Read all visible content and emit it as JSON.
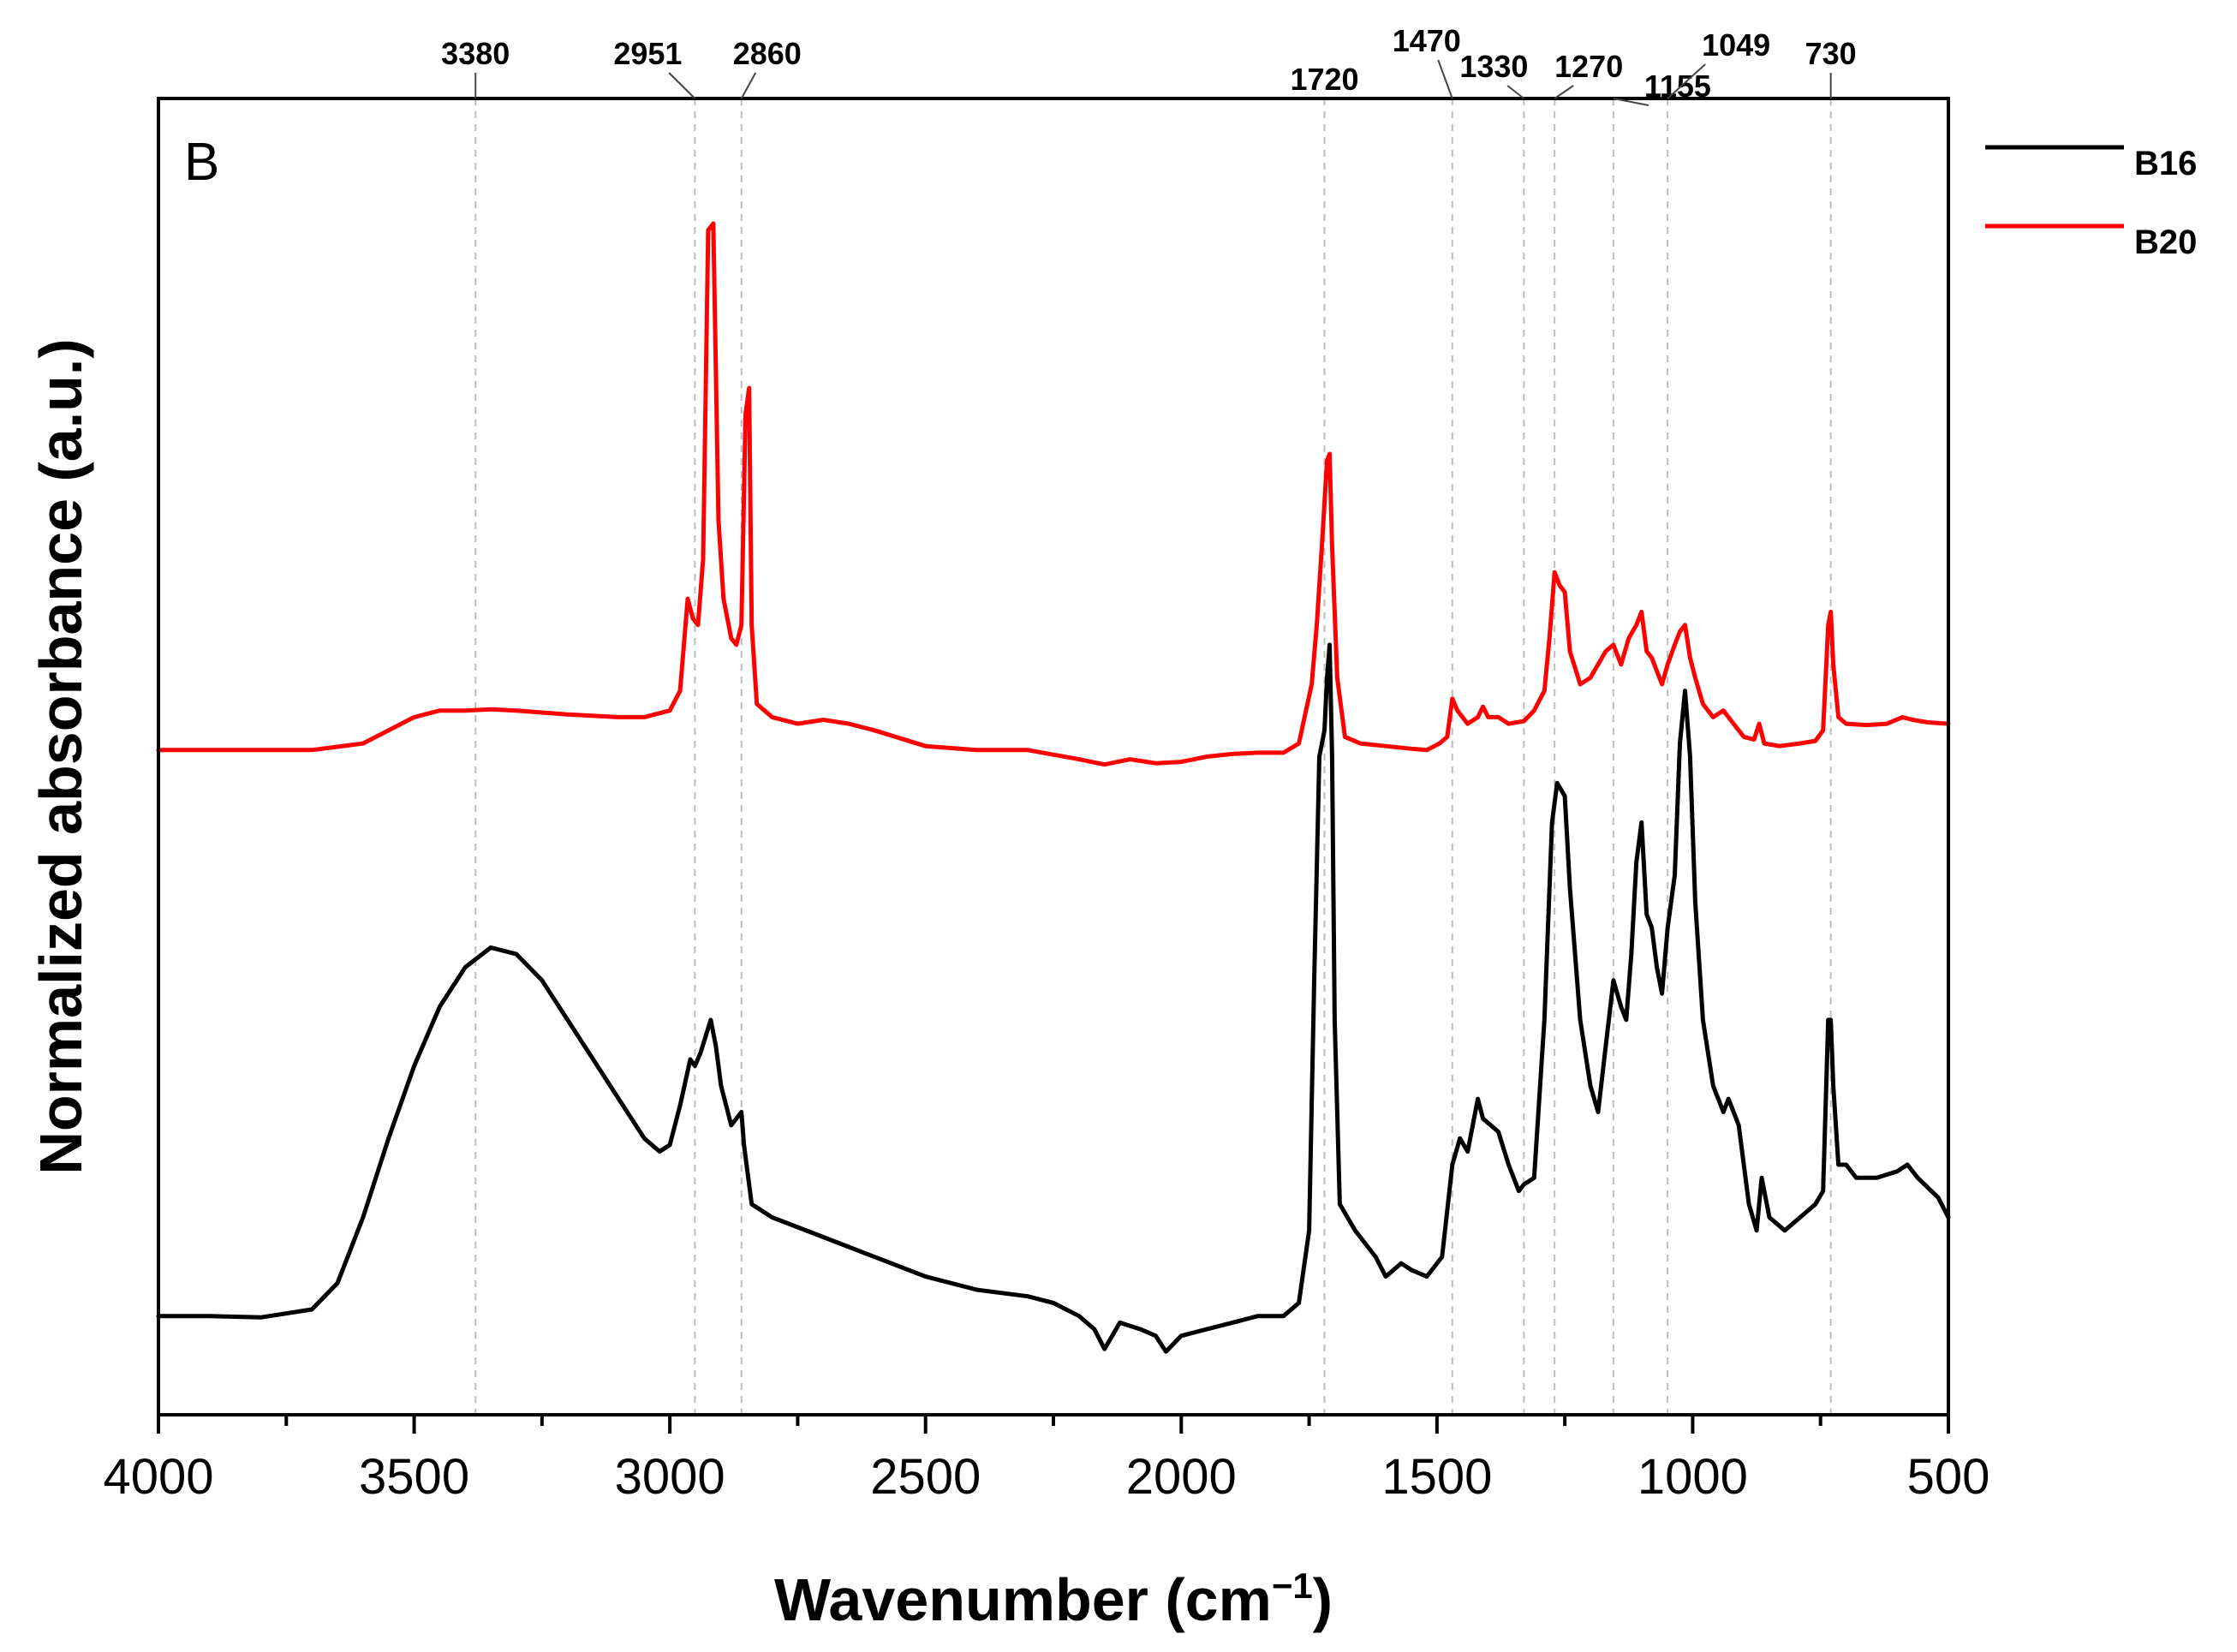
{
  "chart_data": {
    "type": "line",
    "panel_label": "B",
    "xlabel_main": "Wavenumber (cm",
    "xlabel_sup": "−1",
    "xlabel_close": ")",
    "ylabel": "Normalized absorbance (a.u.)",
    "xlim": [
      4000,
      500
    ],
    "ylim": [
      0,
      1
    ],
    "x_ticks": [
      4000,
      3500,
      3000,
      2500,
      2000,
      1500,
      1000,
      500
    ],
    "x_tick_labels": [
      "4000",
      "3500",
      "3000",
      "2500",
      "2000",
      "1500",
      "1000",
      "500"
    ],
    "y_tick_labels_shown": false,
    "reference_lines": [
      {
        "x": 3380,
        "label": "3380"
      },
      {
        "x": 2951,
        "label": "2951"
      },
      {
        "x": 2860,
        "label": "2860"
      },
      {
        "x": 1720,
        "label": "1720"
      },
      {
        "x": 1470,
        "label": "1470"
      },
      {
        "x": 1330,
        "label": "1330"
      },
      {
        "x": 1270,
        "label": "1270"
      },
      {
        "x": 1155,
        "label": "1155"
      },
      {
        "x": 1049,
        "label": "1049"
      },
      {
        "x": 730,
        "label": "730"
      }
    ],
    "legend": {
      "position": "outside-top-right",
      "entries": [
        "B16",
        "B20"
      ]
    },
    "series": [
      {
        "name": "B16",
        "color": "#000000",
        "points": [
          [
            4000,
            0.075
          ],
          [
            3900,
            0.075
          ],
          [
            3800,
            0.074
          ],
          [
            3700,
            0.08
          ],
          [
            3650,
            0.1
          ],
          [
            3600,
            0.15
          ],
          [
            3550,
            0.21
          ],
          [
            3500,
            0.265
          ],
          [
            3450,
            0.31
          ],
          [
            3400,
            0.34
          ],
          [
            3350,
            0.355
          ],
          [
            3300,
            0.35
          ],
          [
            3250,
            0.33
          ],
          [
            3200,
            0.3
          ],
          [
            3150,
            0.27
          ],
          [
            3100,
            0.24
          ],
          [
            3050,
            0.21
          ],
          [
            3020,
            0.2
          ],
          [
            3000,
            0.205
          ],
          [
            2980,
            0.235
          ],
          [
            2960,
            0.27
          ],
          [
            2951,
            0.265
          ],
          [
            2940,
            0.275
          ],
          [
            2920,
            0.3
          ],
          [
            2910,
            0.28
          ],
          [
            2900,
            0.25
          ],
          [
            2880,
            0.22
          ],
          [
            2860,
            0.23
          ],
          [
            2855,
            0.205
          ],
          [
            2840,
            0.16
          ],
          [
            2800,
            0.15
          ],
          [
            2700,
            0.135
          ],
          [
            2600,
            0.12
          ],
          [
            2500,
            0.105
          ],
          [
            2400,
            0.095
          ],
          [
            2300,
            0.09
          ],
          [
            2250,
            0.085
          ],
          [
            2200,
            0.075
          ],
          [
            2170,
            0.065
          ],
          [
            2150,
            0.05
          ],
          [
            2120,
            0.07
          ],
          [
            2080,
            0.065
          ],
          [
            2050,
            0.06
          ],
          [
            2030,
            0.048
          ],
          [
            2000,
            0.06
          ],
          [
            1950,
            0.065
          ],
          [
            1900,
            0.07
          ],
          [
            1850,
            0.075
          ],
          [
            1800,
            0.075
          ],
          [
            1770,
            0.085
          ],
          [
            1750,
            0.14
          ],
          [
            1740,
            0.33
          ],
          [
            1730,
            0.5
          ],
          [
            1720,
            0.52
          ],
          [
            1715,
            0.56
          ],
          [
            1710,
            0.585
          ],
          [
            1705,
            0.5
          ],
          [
            1700,
            0.3
          ],
          [
            1690,
            0.16
          ],
          [
            1660,
            0.14
          ],
          [
            1620,
            0.12
          ],
          [
            1600,
            0.105
          ],
          [
            1570,
            0.115
          ],
          [
            1550,
            0.11
          ],
          [
            1520,
            0.105
          ],
          [
            1490,
            0.12
          ],
          [
            1470,
            0.19
          ],
          [
            1455,
            0.21
          ],
          [
            1440,
            0.2
          ],
          [
            1420,
            0.24
          ],
          [
            1410,
            0.225
          ],
          [
            1380,
            0.215
          ],
          [
            1360,
            0.19
          ],
          [
            1340,
            0.17
          ],
          [
            1330,
            0.175
          ],
          [
            1310,
            0.18
          ],
          [
            1290,
            0.3
          ],
          [
            1275,
            0.45
          ],
          [
            1265,
            0.48
          ],
          [
            1250,
            0.47
          ],
          [
            1240,
            0.4
          ],
          [
            1220,
            0.3
          ],
          [
            1200,
            0.25
          ],
          [
            1185,
            0.23
          ],
          [
            1170,
            0.28
          ],
          [
            1155,
            0.33
          ],
          [
            1140,
            0.31
          ],
          [
            1130,
            0.3
          ],
          [
            1120,
            0.35
          ],
          [
            1110,
            0.42
          ],
          [
            1100,
            0.45
          ],
          [
            1090,
            0.38
          ],
          [
            1080,
            0.37
          ],
          [
            1070,
            0.34
          ],
          [
            1060,
            0.32
          ],
          [
            1049,
            0.37
          ],
          [
            1035,
            0.41
          ],
          [
            1025,
            0.51
          ],
          [
            1015,
            0.55
          ],
          [
            1005,
            0.5
          ],
          [
            995,
            0.39
          ],
          [
            980,
            0.3
          ],
          [
            960,
            0.25
          ],
          [
            940,
            0.23
          ],
          [
            930,
            0.24
          ],
          [
            910,
            0.22
          ],
          [
            890,
            0.16
          ],
          [
            875,
            0.14
          ],
          [
            865,
            0.18
          ],
          [
            850,
            0.15
          ],
          [
            820,
            0.14
          ],
          [
            790,
            0.15
          ],
          [
            760,
            0.16
          ],
          [
            745,
            0.17
          ],
          [
            735,
            0.3
          ],
          [
            730,
            0.3
          ],
          [
            725,
            0.25
          ],
          [
            715,
            0.19
          ],
          [
            700,
            0.19
          ],
          [
            680,
            0.18
          ],
          [
            640,
            0.18
          ],
          [
            600,
            0.185
          ],
          [
            580,
            0.19
          ],
          [
            560,
            0.18
          ],
          [
            520,
            0.165
          ],
          [
            500,
            0.15
          ]
        ]
      },
      {
        "name": "B20",
        "color": "#ff0000",
        "points": [
          [
            4000,
            0.505
          ],
          [
            3900,
            0.505
          ],
          [
            3800,
            0.505
          ],
          [
            3700,
            0.505
          ],
          [
            3600,
            0.51
          ],
          [
            3550,
            0.52
          ],
          [
            3500,
            0.53
          ],
          [
            3450,
            0.535
          ],
          [
            3400,
            0.535
          ],
          [
            3350,
            0.536
          ],
          [
            3300,
            0.535
          ],
          [
            3200,
            0.532
          ],
          [
            3100,
            0.53
          ],
          [
            3050,
            0.53
          ],
          [
            3000,
            0.535
          ],
          [
            2980,
            0.55
          ],
          [
            2965,
            0.62
          ],
          [
            2955,
            0.605
          ],
          [
            2945,
            0.6
          ],
          [
            2935,
            0.65
          ],
          [
            2925,
            0.9
          ],
          [
            2915,
            0.905
          ],
          [
            2905,
            0.68
          ],
          [
            2895,
            0.62
          ],
          [
            2880,
            0.59
          ],
          [
            2870,
            0.585
          ],
          [
            2860,
            0.6
          ],
          [
            2852,
            0.76
          ],
          [
            2845,
            0.78
          ],
          [
            2840,
            0.6
          ],
          [
            2830,
            0.54
          ],
          [
            2800,
            0.53
          ],
          [
            2750,
            0.525
          ],
          [
            2700,
            0.528
          ],
          [
            2650,
            0.525
          ],
          [
            2600,
            0.52
          ],
          [
            2500,
            0.508
          ],
          [
            2400,
            0.505
          ],
          [
            2300,
            0.505
          ],
          [
            2200,
            0.498
          ],
          [
            2150,
            0.494
          ],
          [
            2100,
            0.498
          ],
          [
            2050,
            0.495
          ],
          [
            2000,
            0.496
          ],
          [
            1950,
            0.5
          ],
          [
            1900,
            0.502
          ],
          [
            1850,
            0.503
          ],
          [
            1800,
            0.503
          ],
          [
            1770,
            0.51
          ],
          [
            1745,
            0.555
          ],
          [
            1735,
            0.6
          ],
          [
            1725,
            0.66
          ],
          [
            1715,
            0.725
          ],
          [
            1710,
            0.73
          ],
          [
            1705,
            0.66
          ],
          [
            1695,
            0.56
          ],
          [
            1680,
            0.515
          ],
          [
            1650,
            0.51
          ],
          [
            1600,
            0.508
          ],
          [
            1550,
            0.506
          ],
          [
            1520,
            0.505
          ],
          [
            1495,
            0.51
          ],
          [
            1480,
            0.515
          ],
          [
            1470,
            0.544
          ],
          [
            1460,
            0.535
          ],
          [
            1440,
            0.525
          ],
          [
            1420,
            0.53
          ],
          [
            1410,
            0.538
          ],
          [
            1400,
            0.53
          ],
          [
            1380,
            0.53
          ],
          [
            1360,
            0.525
          ],
          [
            1330,
            0.527
          ],
          [
            1310,
            0.535
          ],
          [
            1290,
            0.55
          ],
          [
            1280,
            0.59
          ],
          [
            1270,
            0.64
          ],
          [
            1260,
            0.63
          ],
          [
            1250,
            0.625
          ],
          [
            1240,
            0.58
          ],
          [
            1220,
            0.555
          ],
          [
            1200,
            0.56
          ],
          [
            1185,
            0.57
          ],
          [
            1170,
            0.58
          ],
          [
            1155,
            0.585
          ],
          [
            1140,
            0.57
          ],
          [
            1125,
            0.59
          ],
          [
            1110,
            0.6
          ],
          [
            1100,
            0.61
          ],
          [
            1090,
            0.58
          ],
          [
            1080,
            0.575
          ],
          [
            1070,
            0.565
          ],
          [
            1060,
            0.555
          ],
          [
            1049,
            0.57
          ],
          [
            1035,
            0.585
          ],
          [
            1025,
            0.595
          ],
          [
            1015,
            0.6
          ],
          [
            1005,
            0.575
          ],
          [
            995,
            0.56
          ],
          [
            980,
            0.54
          ],
          [
            960,
            0.53
          ],
          [
            940,
            0.535
          ],
          [
            920,
            0.525
          ],
          [
            900,
            0.515
          ],
          [
            880,
            0.513
          ],
          [
            870,
            0.525
          ],
          [
            860,
            0.51
          ],
          [
            830,
            0.508
          ],
          [
            790,
            0.51
          ],
          [
            760,
            0.512
          ],
          [
            745,
            0.52
          ],
          [
            735,
            0.6
          ],
          [
            730,
            0.61
          ],
          [
            725,
            0.57
          ],
          [
            715,
            0.53
          ],
          [
            700,
            0.525
          ],
          [
            660,
            0.524
          ],
          [
            620,
            0.525
          ],
          [
            590,
            0.53
          ],
          [
            570,
            0.528
          ],
          [
            540,
            0.526
          ],
          [
            500,
            0.525
          ]
        ]
      }
    ]
  }
}
